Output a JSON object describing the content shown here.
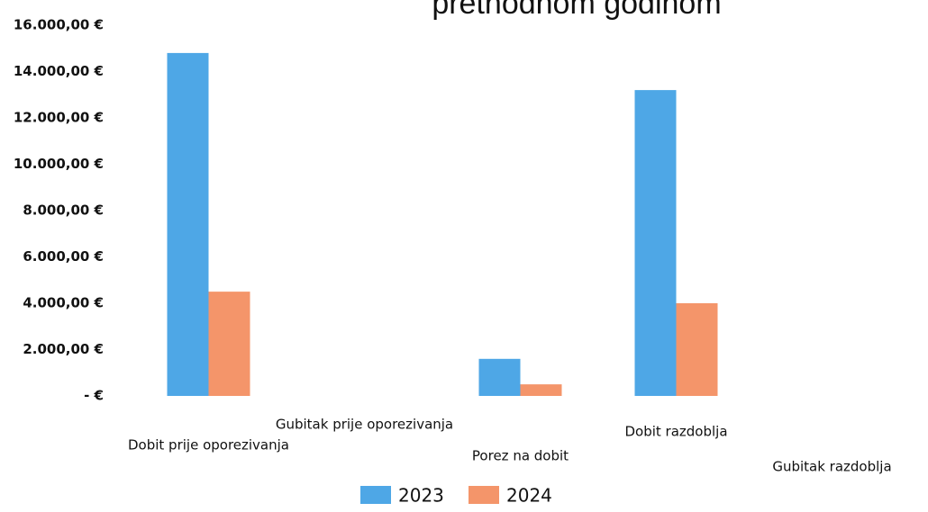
{
  "chart_data": {
    "type": "bar",
    "title": "prethodnom godinom",
    "categories": [
      "Dobit prije oporezivanja",
      "Gubitak prije oporezivanja",
      "Porez na dobit",
      "Dobit razdoblja",
      "Gubitak razdoblja"
    ],
    "series": [
      {
        "name": "2023",
        "color": "#4ea7e6",
        "values": [
          14800,
          0,
          1600,
          13200,
          0
        ]
      },
      {
        "name": "2024",
        "color": "#f4956a",
        "values": [
          4500,
          0,
          500,
          4000,
          0
        ]
      }
    ],
    "ylim": [
      0,
      16000
    ],
    "yticks": [
      {
        "value": 0,
        "label": "-  €"
      },
      {
        "value": 2000,
        "label": "2.000,00 €"
      },
      {
        "value": 4000,
        "label": "4.000,00 €"
      },
      {
        "value": 6000,
        "label": "6.000,00 €"
      },
      {
        "value": 8000,
        "label": "8.000,00 €"
      },
      {
        "value": 10000,
        "label": "10.000,00 €"
      },
      {
        "value": 12000,
        "label": "12.000,00 €"
      },
      {
        "value": 14000,
        "label": "14.000,00 €"
      },
      {
        "value": 16000,
        "label": "16.000,00 €"
      }
    ],
    "grid": false,
    "legend": "bottom"
  }
}
